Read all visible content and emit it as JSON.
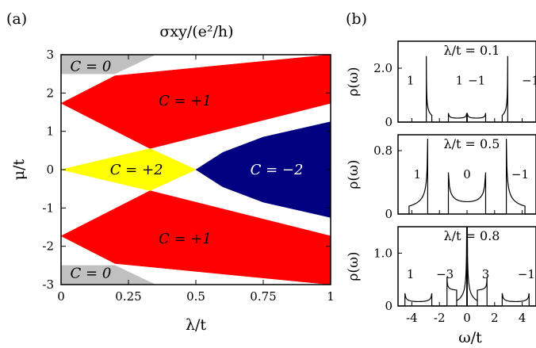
{
  "panel_a_label": "(a)",
  "panel_b_label": "(b)",
  "chart_data": [
    {
      "type": "area",
      "title": "σxy/(e²/h)",
      "xlabel": "λ/t",
      "ylabel": "μ/t",
      "xlim": [
        0,
        1
      ],
      "ylim": [
        -3,
        3
      ],
      "xticks": [
        "0",
        "0.25",
        "0.5",
        "0.75",
        "1"
      ],
      "yticks": [
        "-3",
        "-2",
        "-1",
        "0",
        "1",
        "2",
        "3"
      ],
      "regions": [
        {
          "label": "C = 0",
          "color": "#c0c0c0",
          "polygon": [
            [
              0,
              3
            ],
            [
              0,
              2.5
            ],
            [
              0.2,
              2.5
            ],
            [
              0.35,
              3
            ]
          ]
        },
        {
          "label": "C = 0",
          "color": "#c0c0c0",
          "polygon": [
            [
              0,
              -3
            ],
            [
              0,
              -2.5
            ],
            [
              0.2,
              -2.5
            ],
            [
              0.35,
              -3
            ]
          ]
        },
        {
          "label": "C = +1",
          "color": "#ff0000",
          "polygon": [
            [
              0,
              1.732
            ],
            [
              0.2,
              2.45
            ],
            [
              1,
              3
            ],
            [
              1,
              1.732
            ],
            [
              0.33,
              0.55
            ]
          ]
        },
        {
          "label": "C = +1",
          "color": "#ff0000",
          "polygon": [
            [
              0,
              -1.732
            ],
            [
              0.33,
              -0.55
            ],
            [
              1,
              -1.732
            ],
            [
              1,
              -3
            ],
            [
              0.2,
              -2.45
            ]
          ]
        },
        {
          "label": "C = +2",
          "color": "#ffff00",
          "polygon": [
            [
              0,
              0
            ],
            [
              0.33,
              0.55
            ],
            [
              0.5,
              0
            ],
            [
              0.33,
              -0.55
            ]
          ]
        },
        {
          "label": "C = −2",
          "color": "#000080",
          "polygon": [
            [
              0.5,
              0
            ],
            [
              0.6,
              0.45
            ],
            [
              0.75,
              0.85
            ],
            [
              1,
              1.25
            ],
            [
              1,
              -1.25
            ],
            [
              0.75,
              -0.85
            ],
            [
              0.6,
              -0.45
            ]
          ]
        }
      ],
      "region_labels": [
        {
          "text": "C = 0",
          "x": 0.11,
          "y": 2.7,
          "color": "#000000"
        },
        {
          "text": "C = +1",
          "x": 0.46,
          "y": 1.8,
          "color": "#000000"
        },
        {
          "text": "C = +2",
          "x": 0.28,
          "y": 0,
          "color": "#000000"
        },
        {
          "text": "C = −2",
          "x": 0.8,
          "y": 0,
          "color": "#ffffff"
        },
        {
          "text": "C = +1",
          "x": 0.46,
          "y": -1.8,
          "color": "#000000"
        },
        {
          "text": "C = 0",
          "x": 0.11,
          "y": -2.7,
          "color": "#000000"
        }
      ]
    },
    {
      "type": "line",
      "xlabel": "ω/t",
      "ylabel": "ρ(ω)",
      "xlim": [
        -5,
        5
      ],
      "xticks": [
        "-4",
        "-2",
        "0",
        "2",
        "4"
      ],
      "panels": [
        {
          "title": "λ/t = 0.1",
          "ylim": [
            0,
            3.0
          ],
          "yticks": [
            "0",
            "2.0"
          ],
          "ytick_values": [
            0,
            2.0
          ],
          "band_labels": [
            {
              "text": "1",
              "x": -4.1,
              "y": 1.55
            },
            {
              "text": "1",
              "x": -0.55,
              "y": 1.55
            },
            {
              "text": "−1",
              "x": 0.7,
              "y": 1.55
            },
            {
              "text": "−1",
              "x": 4.6,
              "y": 1.55
            }
          ],
          "bands": [
            {
              "range": [
                -2.95,
                -2.55
              ],
              "edge": "left",
              "peak": 2.45,
              "base": 0.25
            },
            {
              "range": [
                -1.35,
                -0.02
              ],
              "edge": "both",
              "peak": 0.55,
              "base": 0.12
            },
            {
              "range": [
                0.02,
                1.35
              ],
              "edge": "both",
              "peak": 0.55,
              "base": 0.12
            },
            {
              "range": [
                2.55,
                2.95
              ],
              "edge": "right",
              "peak": 2.45,
              "base": 0.25
            }
          ]
        },
        {
          "title": "λ/t = 0.5",
          "ylim": [
            0,
            1.0
          ],
          "yticks": [
            "0",
            "0.8"
          ],
          "ytick_values": [
            0,
            0.8
          ],
          "band_labels": [
            {
              "text": "1",
              "x": -3.6,
              "y": 0.5
            },
            {
              "text": "0",
              "x": 0,
              "y": 0.5
            },
            {
              "text": "−1",
              "x": 3.85,
              "y": 0.5
            }
          ],
          "bands": [
            {
              "range": [
                -4.2,
                -2.85
              ],
              "edge": "right",
              "peak": 0.95,
              "base": 0.1
            },
            {
              "range": [
                -1.35,
                1.35
              ],
              "edge": "both",
              "peak": 0.95,
              "base": 0.1
            },
            {
              "range": [
                2.85,
                4.2
              ],
              "edge": "left",
              "peak": 0.95,
              "base": 0.1
            }
          ]
        },
        {
          "title": "λ/t = 0.8",
          "ylim": [
            0,
            1.5
          ],
          "yticks": [
            "0",
            "1.0"
          ],
          "ytick_values": [
            0,
            1.0
          ],
          "band_labels": [
            {
              "text": "1",
              "x": -4.1,
              "y": 0.6
            },
            {
              "text": "−3",
              "x": -1.6,
              "y": 0.6
            },
            {
              "text": "3",
              "x": 1.35,
              "y": 0.6
            },
            {
              "text": "−1",
              "x": 4.3,
              "y": 0.6
            }
          ],
          "bands": [
            {
              "range": [
                -4.5,
                -2.55
              ],
              "edge": "both",
              "peak": 0.42,
              "base": 0.06
            },
            {
              "range": [
                -1.45,
                -0.75
              ],
              "edge": "left",
              "peak": 0.55,
              "base": 0.3
            },
            {
              "range": [
                -0.75,
                -0.02
              ],
              "edge": "right",
              "peak": 1.5,
              "base": 0.1
            },
            {
              "range": [
                0.02,
                0.75
              ],
              "edge": "left",
              "peak": 1.5,
              "base": 0.1
            },
            {
              "range": [
                0.75,
                1.45
              ],
              "edge": "right",
              "peak": 0.55,
              "base": 0.3
            },
            {
              "range": [
                2.55,
                4.5
              ],
              "edge": "both",
              "peak": 0.42,
              "base": 0.06
            }
          ]
        }
      ]
    }
  ]
}
